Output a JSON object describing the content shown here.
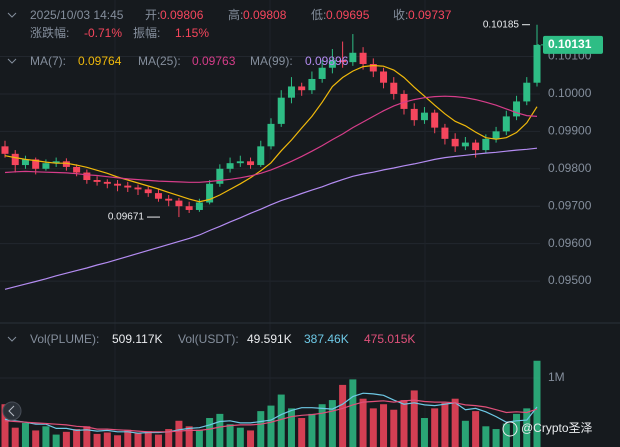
{
  "chart_data": {
    "type": "candlestick",
    "header": {
      "datetime": "2025/10/03 14:45",
      "open_label": "开:",
      "open": 0.09806,
      "high_label": "高:",
      "high": 0.09808,
      "low_label": "低:",
      "low": 0.09695,
      "close_label": "收:",
      "close": 0.09737,
      "change_label": "涨跌幅:",
      "change": "-0.71%",
      "amplitude_label": "振幅:",
      "amplitude": "1.15%"
    },
    "ohlc": {
      "open": [
        0.0986,
        0.0984,
        0.0981,
        0.09825,
        0.098,
        0.09815,
        0.0982,
        0.09805,
        0.0979,
        0.0977,
        0.09765,
        0.0976,
        0.09755,
        0.0975,
        0.09745,
        0.09735,
        0.0972,
        0.09715,
        0.097,
        0.0969,
        0.0971,
        0.0976,
        0.098,
        0.09815,
        0.0982,
        0.0981,
        0.0986,
        0.0992,
        0.0999,
        0.1002,
        0.1001,
        0.1004,
        0.1007,
        0.1009,
        0.10085,
        0.1011,
        0.1008,
        0.1006,
        0.1003,
        0.1,
        0.0996,
        0.0993,
        0.0995,
        0.0991,
        0.0988,
        0.0986,
        0.0987,
        0.0985,
        0.0988,
        0.099,
        0.0994,
        0.0998,
        0.1003
      ],
      "high": [
        0.09875,
        0.0985,
        0.09835,
        0.0983,
        0.09825,
        0.0983,
        0.09828,
        0.09812,
        0.09798,
        0.0978,
        0.09772,
        0.0977,
        0.09765,
        0.09758,
        0.09752,
        0.09745,
        0.0973,
        0.09722,
        0.09712,
        0.0972,
        0.0977,
        0.09812,
        0.0983,
        0.09835,
        0.0983,
        0.09875,
        0.09935,
        0.1001,
        0.10045,
        0.1003,
        0.1006,
        0.1009,
        0.1012,
        0.1014,
        0.1016,
        0.10125,
        0.10095,
        0.1007,
        0.10045,
        0.1001,
        0.09975,
        0.09965,
        0.09958,
        0.0992,
        0.09895,
        0.09885,
        0.09878,
        0.09892,
        0.09912,
        0.09955,
        0.09995,
        0.10045,
        0.10185
      ],
      "low": [
        0.0983,
        0.0979,
        0.098,
        0.09785,
        0.09795,
        0.09805,
        0.09795,
        0.0978,
        0.0976,
        0.09755,
        0.09748,
        0.0974,
        0.09738,
        0.0973,
        0.09725,
        0.09712,
        0.097,
        0.09671,
        0.09682,
        0.09685,
        0.09705,
        0.09752,
        0.0979,
        0.09805,
        0.098,
        0.09805,
        0.09852,
        0.09912,
        0.09975,
        0.09995,
        0.1,
        0.1003,
        0.10055,
        0.1007,
        0.10075,
        0.10065,
        0.10045,
        0.10015,
        0.09985,
        0.09945,
        0.09915,
        0.0992,
        0.09895,
        0.09865,
        0.09845,
        0.0985,
        0.0983,
        0.09842,
        0.0987,
        0.0989,
        0.0993,
        0.0997,
        0.1002
      ],
      "close": [
        0.0984,
        0.0981,
        0.09825,
        0.098,
        0.09815,
        0.0982,
        0.09805,
        0.0979,
        0.0977,
        0.09765,
        0.0976,
        0.09755,
        0.0975,
        0.09745,
        0.09735,
        0.0972,
        0.09715,
        0.097,
        0.0969,
        0.0971,
        0.0976,
        0.098,
        0.09815,
        0.0982,
        0.0981,
        0.0986,
        0.0992,
        0.0999,
        0.1002,
        0.1001,
        0.1004,
        0.1007,
        0.1009,
        0.10085,
        0.1011,
        0.1008,
        0.1006,
        0.1003,
        0.1,
        0.0996,
        0.0993,
        0.0995,
        0.0991,
        0.0988,
        0.0986,
        0.0987,
        0.0985,
        0.0988,
        0.099,
        0.0994,
        0.0998,
        0.1003,
        0.10131
      ]
    },
    "up_color": "#2ebd85",
    "down_color": "#f6465d",
    "series": [
      {
        "name": "MA(7):",
        "legend_value": 0.09764,
        "color": "#f0b90b",
        "values": [
          0.09835,
          0.0983,
          0.09825,
          0.09822,
          0.09818,
          0.09815,
          0.09815,
          0.0981,
          0.09804,
          0.09796,
          0.09788,
          0.09778,
          0.0977,
          0.09762,
          0.09754,
          0.09746,
          0.09737,
          0.09728,
          0.09719,
          0.09712,
          0.09718,
          0.0973,
          0.09745,
          0.0976,
          0.09776,
          0.09795,
          0.09816,
          0.09848,
          0.09877,
          0.09909,
          0.0994,
          0.09978,
          0.1002,
          0.10044,
          0.10061,
          0.10073,
          0.10076,
          0.10074,
          0.10064,
          0.10044,
          0.10018,
          0.09994,
          0.0997,
          0.09947,
          0.09927,
          0.09915,
          0.09898,
          0.09883,
          0.09879,
          0.09883,
          0.09897,
          0.09923,
          0.09966
        ]
      },
      {
        "name": "MA(25):",
        "legend_value": 0.09763,
        "color": "#d63d8a",
        "values": [
          0.0979,
          0.09792,
          0.09793,
          0.09792,
          0.09791,
          0.0979,
          0.09789,
          0.09787,
          0.09784,
          0.09782,
          0.09779,
          0.09776,
          0.09773,
          0.09771,
          0.09769,
          0.09767,
          0.09766,
          0.09765,
          0.09764,
          0.09764,
          0.09766,
          0.09769,
          0.09772,
          0.09776,
          0.09781,
          0.09788,
          0.09797,
          0.09808,
          0.0982,
          0.09833,
          0.09847,
          0.09862,
          0.09878,
          0.09893,
          0.0991,
          0.09925,
          0.0994,
          0.09955,
          0.09968,
          0.09978,
          0.09985,
          0.0999,
          0.09993,
          0.09994,
          0.09993,
          0.0999,
          0.09985,
          0.09978,
          0.0997,
          0.0996,
          0.0995,
          0.09942,
          0.0994
        ]
      },
      {
        "name": "MA(99):",
        "legend_value": 0.09896,
        "color": "#b48cf2",
        "values": [
          0.09478,
          0.09485,
          0.09492,
          0.09499,
          0.09506,
          0.09514,
          0.09521,
          0.09528,
          0.09535,
          0.09543,
          0.0955,
          0.09558,
          0.09566,
          0.09574,
          0.09582,
          0.0959,
          0.09598,
          0.09606,
          0.09614,
          0.09623,
          0.09635,
          0.09646,
          0.09658,
          0.09669,
          0.09681,
          0.09692,
          0.09704,
          0.09715,
          0.09724,
          0.09734,
          0.09743,
          0.09752,
          0.09762,
          0.09771,
          0.0978,
          0.09786,
          0.09791,
          0.09797,
          0.09802,
          0.09808,
          0.09813,
          0.09819,
          0.09825,
          0.0983,
          0.09833,
          0.09836,
          0.09839,
          0.09842,
          0.09844,
          0.09847,
          0.0985,
          0.09852,
          0.09855
        ]
      }
    ],
    "ylim": [
      0.09396,
      0.10251
    ],
    "yticks": [
      {
        "value": 0.101,
        "label": "0.10100"
      },
      {
        "value": 0.1,
        "label": "0.10000"
      },
      {
        "value": 0.099,
        "label": "0.09900"
      },
      {
        "value": 0.098,
        "label": "0.09800"
      },
      {
        "value": 0.097,
        "label": "0.09700"
      },
      {
        "value": 0.096,
        "label": "0.09600"
      },
      {
        "value": 0.095,
        "label": "0.09500"
      }
    ],
    "grid": true,
    "high_marker": 0.10185,
    "low_marker": 0.09671,
    "last_price": 0.10131,
    "volume": {
      "label": "Vol(PLUME):",
      "value": "509.117K",
      "usdt_label": "Vol(USDT):",
      "usdt_value": "49.591K",
      "values": [
        620000,
        280000,
        350000,
        240000,
        300000,
        180000,
        220000,
        260000,
        300000,
        190000,
        210000,
        170000,
        250000,
        200000,
        230000,
        180000,
        260000,
        380000,
        300000,
        250000,
        420000,
        480000,
        330000,
        280000,
        240000,
        520000,
        600000,
        760000,
        560000,
        420000,
        480000,
        620000,
        680000,
        900000,
        980000,
        700000,
        560000,
        620000,
        540000,
        680000,
        820000,
        420000,
        560000,
        640000,
        700000,
        380000,
        520000,
        300000,
        260000,
        340000,
        480000,
        560000,
        1250000
      ],
      "ylim": [
        0,
        1300000
      ],
      "yticks": [
        {
          "value": 1000000,
          "label": "1M"
        }
      ],
      "series": [
        {
          "name": "387.46K",
          "color": "#6ec9e6",
          "values": [
            400000,
            380000,
            360000,
            330000,
            330000,
            270000,
            270000,
            240000,
            250000,
            230000,
            240000,
            220000,
            220000,
            200000,
            210000,
            210000,
            220000,
            250000,
            270000,
            280000,
            320000,
            370000,
            380000,
            350000,
            350000,
            370000,
            390000,
            470000,
            530000,
            570000,
            570000,
            560000,
            550000,
            620000,
            730000,
            780000,
            770000,
            750000,
            680000,
            620000,
            640000,
            610000,
            600000,
            620000,
            640000,
            540000,
            560000,
            510000,
            440000,
            360000,
            380000,
            390000,
            580000
          ]
        },
        {
          "name": "475.015K",
          "color": "#e0507a",
          "values": [
            380000,
            370000,
            360000,
            350000,
            340000,
            330000,
            320000,
            300000,
            290000,
            260000,
            260000,
            250000,
            240000,
            230000,
            220000,
            220000,
            220000,
            230000,
            240000,
            240000,
            260000,
            290000,
            310000,
            320000,
            320000,
            330000,
            360000,
            400000,
            440000,
            460000,
            470000,
            490000,
            520000,
            560000,
            610000,
            650000,
            660000,
            670000,
            650000,
            670000,
            680000,
            660000,
            650000,
            650000,
            640000,
            610000,
            600000,
            580000,
            540000,
            500000,
            510000,
            500000,
            550000
          ]
        }
      ]
    },
    "watermark": "@Crypto圣泽"
  }
}
